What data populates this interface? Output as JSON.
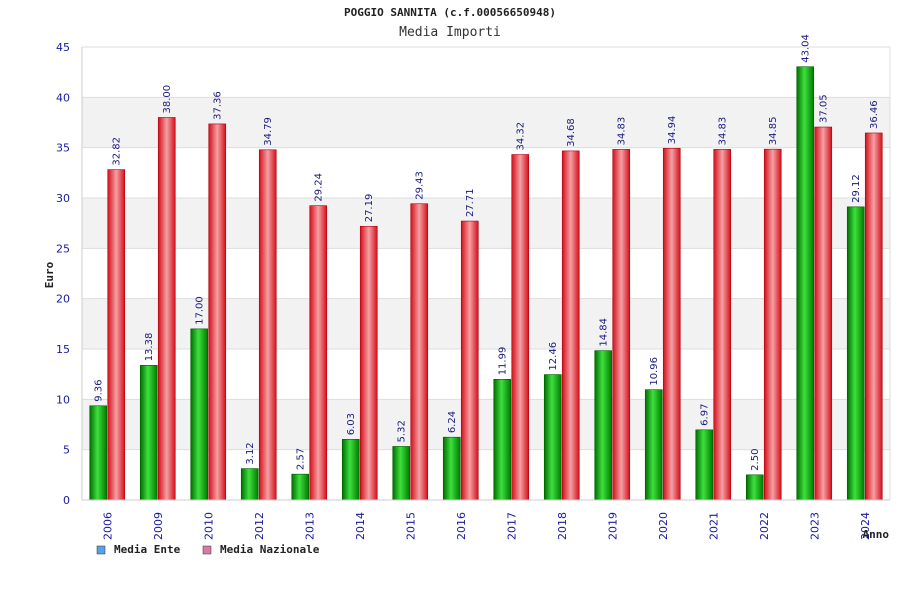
{
  "chart_data": {
    "type": "bar",
    "title": "POGGIO SANNITA (c.f.00056650948)",
    "subtitle": "Media Importi",
    "xlabel": "Anno",
    "ylabel": "Euro",
    "ylim": [
      0,
      45
    ],
    "yticks": [
      0,
      5,
      10,
      15,
      20,
      25,
      30,
      35,
      40,
      45
    ],
    "grid": true,
    "legend_position": "bottom-left",
    "categories": [
      "2006",
      "2009",
      "2010",
      "2012",
      "2013",
      "2014",
      "2015",
      "2016",
      "2017",
      "2018",
      "2019",
      "2020",
      "2021",
      "2022",
      "2023",
      "2024"
    ],
    "series": [
      {
        "name": "Media Ente",
        "color": "#1faa1f",
        "legend_color": "#5aa0e6",
        "values": [
          9.36,
          13.38,
          17.0,
          3.12,
          2.57,
          6.03,
          5.32,
          6.24,
          11.99,
          12.46,
          14.84,
          10.96,
          6.97,
          2.5,
          43.04,
          29.12
        ],
        "labels": [
          "9.36",
          "13.38",
          "17.00",
          "3.12",
          "2.57",
          "6.03",
          "5.32",
          "6.24",
          "11.99",
          "12.46",
          "14.84",
          "10.96",
          "6.97",
          "2.50",
          "43.04",
          "29.12"
        ]
      },
      {
        "name": "Media Nazionale",
        "color": "#e8212b",
        "legend_color": "#d97aa6",
        "values": [
          32.82,
          38.0,
          37.36,
          34.79,
          29.24,
          27.19,
          29.43,
          27.71,
          34.32,
          34.68,
          34.83,
          34.94,
          34.83,
          34.85,
          37.05,
          36.46
        ],
        "labels": [
          "32.82",
          "38.00",
          "37.36",
          "34.79",
          "29.24",
          "27.19",
          "29.43",
          "27.71",
          "34.32",
          "34.68",
          "34.83",
          "34.94",
          "34.83",
          "34.85",
          "37.05",
          "36.46"
        ]
      }
    ]
  }
}
